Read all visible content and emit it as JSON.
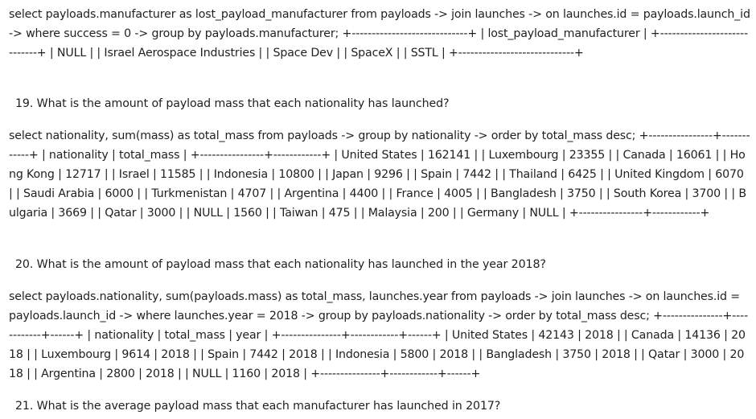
{
  "blocks": {
    "block1_text": "select payloads.manufacturer as lost_payload_manufacturer from payloads -> join launches -> on launches.id = payloads.launch_id -> where success = 0 -> group by payloads.manufacturer; +-----------------------------+ | lost_payload_manufacturer | +-----------------------------+ | NULL | | Israel Aerospace Industries | | Space Dev | | SpaceX | | SSTL | +-----------------------------+",
    "question_19": "19. What is the amount of payload mass that each nationality has launched?",
    "block2_text": "select nationality, sum(mass) as total_mass from payloads -> group by nationality -> order by total_mass desc; +----------------+------------+ | nationality | total_mass | +----------------+------------+ | United States | 162141 | | Luxembourg | 23355 | | Canada | 16061 | | Hong Kong | 12717 | | Israel | 11585 | | Indonesia | 10800 | | Japan | 9296 | | Spain | 7442 | | Thailand | 6425 | | United Kingdom | 6070 | | Saudi Arabia | 6000 | | Turkmenistan | 4707 | | Argentina | 4400 | | France | 4005 | | Bangladesh | 3750 | | South Korea | 3700 | | Bulgaria | 3669 | | Qatar | 3000 | | NULL | 1560 | | Taiwan | 475 | | Malaysia | 200 | | Germany | NULL | +----------------+------------+",
    "question_20": "20. What is the amount of payload mass that each nationality has launched in the year 2018?",
    "block3_text": "select payloads.nationality, sum(payloads.mass) as total_mass, launches.year from payloads -> join launches -> on launches.id = payloads.launch_id -> where launches.year = 2018 -> group by payloads.nationality -> order by total_mass desc; +---------------+------------+------+ | nationality | total_mass | year | +---------------+------------+------+ | United States | 42143 | 2018 | | Canada | 14136 | 2018 | | Luxembourg | 9614 | 2018 | | Spain | 7442 | 2018 | | Indonesia | 5800 | 2018 | | Bangladesh | 3750 | 2018 | | Qatar | 3000 | 2018 | | Argentina | 2800 | 2018 | | NULL | 1160 | 2018 | +---------------+------------+------+",
    "question_21": "21. What is the average payload mass that each manufacturer has launched in 2017?"
  }
}
